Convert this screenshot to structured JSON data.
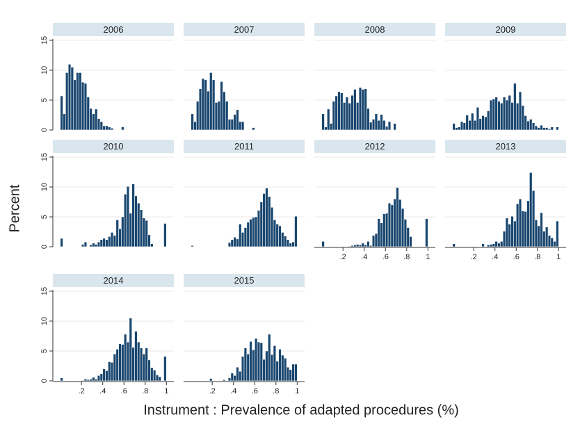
{
  "chart_data": {
    "type": "histogram",
    "ylabel": "Percent",
    "xlabel": "Instrument : Prevalence of adapted procedures (%)",
    "color": "#1a476f",
    "header_color": "#dae6ed",
    "grid": true,
    "xlim": [
      -0.07,
      1.07
    ],
    "ylim": [
      0,
      15
    ],
    "yticks": [
      0,
      5,
      10,
      15
    ],
    "xticks": [
      {
        "value": 0.2,
        "label": ".2"
      },
      {
        "value": 0.4,
        "label": ".4"
      },
      {
        "value": 0.6,
        "label": ".6"
      },
      {
        "value": 0.8,
        "label": ".8"
      },
      1
    ],
    "bins": [
      0,
      0.025,
      0.05,
      0.075,
      0.1,
      0.125,
      0.15,
      0.175,
      0.2,
      0.225,
      0.25,
      0.275,
      0.3,
      0.325,
      0.35,
      0.375,
      0.4,
      0.425,
      0.45,
      0.475,
      0.5,
      0.525,
      0.55,
      0.575,
      0.6,
      0.625,
      0.65,
      0.675,
      0.7,
      0.725,
      0.75,
      0.775,
      0.8,
      0.825,
      0.85,
      0.875,
      0.9,
      0.925,
      0.95,
      0.975,
      1
    ],
    "series": [
      {
        "name": "2006",
        "values": [
          5.7,
          2.7,
          9.6,
          11,
          10.5,
          8.4,
          9.6,
          9.6,
          8,
          7.8,
          5.5,
          3.6,
          2.7,
          3.5,
          1.9,
          1.4,
          0.7,
          0.7,
          0.5,
          0.3,
          0,
          0,
          0,
          0.5,
          0,
          0,
          0,
          0,
          0,
          0,
          0,
          0,
          0,
          0,
          0,
          0,
          0,
          0,
          0,
          0
        ]
      },
      {
        "name": "2007",
        "values": [
          2.7,
          1.4,
          4.8,
          6.9,
          8.6,
          8.4,
          6.5,
          9.6,
          8.4,
          4.6,
          4.8,
          8.1,
          6.4,
          4.8,
          1.8,
          1.8,
          2.6,
          3.4,
          1.4,
          1.4,
          0,
          0,
          0,
          0.4,
          0,
          0,
          0,
          0,
          0,
          0,
          0,
          0,
          0,
          0,
          0,
          0,
          0,
          0,
          0,
          0
        ]
      },
      {
        "name": "2008",
        "values": [
          2.7,
          0.5,
          3.5,
          1.1,
          4.8,
          5.7,
          6.4,
          6.2,
          4.6,
          5.5,
          4.5,
          5.8,
          6.8,
          4.6,
          7.1,
          6.8,
          6.9,
          3.6,
          1.3,
          1.8,
          2.7,
          1.6,
          2.6,
          1.6,
          0.6,
          1.4,
          0,
          1.1,
          0,
          0,
          0,
          0,
          0,
          0,
          0,
          0,
          0,
          0,
          0,
          0
        ]
      },
      {
        "name": "2009",
        "values": [
          1.1,
          0.4,
          0.5,
          1.4,
          1.2,
          2.5,
          1.6,
          2.8,
          1.6,
          3.8,
          1.9,
          2.4,
          2.2,
          3.2,
          5,
          5.2,
          5.5,
          4.8,
          4.5,
          5.5,
          5,
          5.8,
          4.6,
          7.8,
          4.5,
          6.4,
          4.1,
          2.4,
          1.5,
          1.8,
          1.2,
          0.7,
          0.4,
          0.8,
          0.4,
          0.4,
          0.2,
          0.5,
          0,
          0.5
        ]
      },
      {
        "name": "2010",
        "values": [
          1.4,
          0,
          0,
          0,
          0,
          0,
          0,
          0,
          0.4,
          0.8,
          0,
          0.3,
          0.6,
          0.4,
          0.8,
          1.2,
          1.4,
          1.2,
          1.7,
          2.4,
          1.9,
          4.5,
          3,
          5,
          8.8,
          10.1,
          5.6,
          10.5,
          8.5,
          7.3,
          6.2,
          4.8,
          4.4,
          2,
          0.5,
          0,
          0,
          0,
          0,
          3.9
        ]
      },
      {
        "name": "2011",
        "values": [
          0.2,
          0,
          0,
          0,
          0,
          0,
          0,
          0,
          0,
          0,
          0,
          0,
          0,
          0,
          0.7,
          1.2,
          1.6,
          1.3,
          3.8,
          2.4,
          3.2,
          4.1,
          4.6,
          4.9,
          5,
          6.1,
          7.5,
          8.9,
          9.8,
          8.4,
          6.6,
          4.5,
          3.8,
          3.5,
          2.4,
          1.8,
          1.2,
          0.6,
          0.8,
          5.1
        ]
      },
      {
        "name": "2012",
        "values": [
          0.9,
          0,
          0,
          0,
          0,
          0,
          0,
          0,
          0,
          0,
          0.1,
          0.2,
          0.3,
          0.4,
          0.3,
          0.6,
          0.3,
          0.9,
          0.2,
          1.9,
          2.2,
          4.7,
          4,
          5.5,
          5.6,
          7.3,
          7,
          8,
          9.9,
          7.9,
          6.4,
          4.6,
          3.2,
          1.7,
          0,
          0,
          0,
          0,
          0,
          4.7
        ]
      },
      {
        "name": "2013",
        "values": [
          0.5,
          0,
          0,
          0,
          0,
          0,
          0,
          0,
          0,
          0,
          0,
          0.5,
          0,
          0.3,
          0.4,
          0.5,
          0.9,
          0.6,
          0.9,
          2.6,
          4.8,
          3.8,
          5.1,
          4.3,
          7.2,
          8,
          6,
          5.9,
          7.7,
          12.4,
          9.4,
          4.5,
          3.5,
          5.7,
          2.6,
          3.3,
          1.9,
          1.5,
          0.9,
          4.3
        ]
      },
      {
        "name": "2014",
        "values": [
          0.5,
          0,
          0,
          0,
          0,
          0,
          0,
          0,
          0.1,
          0.3,
          0.2,
          0.3,
          0.6,
          0.3,
          0.9,
          1.2,
          2,
          1.7,
          3.2,
          3.1,
          4.5,
          5.3,
          6.2,
          6.1,
          7.8,
          6.5,
          10.5,
          5.6,
          8.3,
          6.5,
          5.5,
          4.5,
          5.5,
          3.5,
          2.2,
          1.8,
          1,
          0.7,
          0,
          4.1
        ]
      },
      {
        "name": "2015",
        "values": [
          0,
          0,
          0,
          0,
          0,
          0,
          0,
          0.4,
          0,
          0,
          0,
          0,
          0.2,
          0,
          0.5,
          1.3,
          0.9,
          2.3,
          1.6,
          4.1,
          5.5,
          4.5,
          6.6,
          5.2,
          7.1,
          6.5,
          6.4,
          3.6,
          5,
          7.8,
          4.4,
          5.9,
          3.3,
          5.3,
          4.3,
          3.8,
          2.3,
          1.9,
          2.8,
          2.8
        ]
      }
    ]
  }
}
